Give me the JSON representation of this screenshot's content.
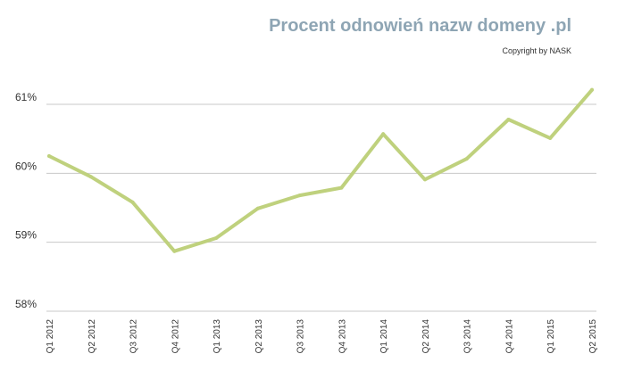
{
  "header": {
    "title": "Procent odnowień nazw domeny .pl",
    "copyright": "Copyright by NASK"
  },
  "colors": {
    "line": "#bfd17d",
    "grid": "#c8c8c8",
    "title": "#8ea5b4"
  },
  "chart_data": {
    "type": "line",
    "title": "Procent odnowień nazw domeny .pl",
    "xlabel": "",
    "ylabel": "",
    "categories": [
      "Q1 2012",
      "Q2 2012",
      "Q3 2012",
      "Q4 2012",
      "Q1 2013",
      "Q2 2013",
      "Q3 2013",
      "Q4 2013",
      "Q1 2014",
      "Q2 2014",
      "Q3 2014",
      "Q4 2014",
      "Q1 2015",
      "Q2 2015"
    ],
    "series": [
      {
        "values": [
          60.25,
          59.95,
          59.58,
          58.87,
          59.06,
          59.49,
          59.68,
          59.79,
          60.57,
          59.91,
          60.21,
          60.78,
          60.51,
          61.21
        ]
      }
    ],
    "ylim": [
      58,
      61
    ],
    "yticks": [
      58,
      59,
      60,
      61
    ],
    "ytick_labels": [
      "58%",
      "59%",
      "60%",
      "61%"
    ],
    "grid": true,
    "legend": "none"
  }
}
